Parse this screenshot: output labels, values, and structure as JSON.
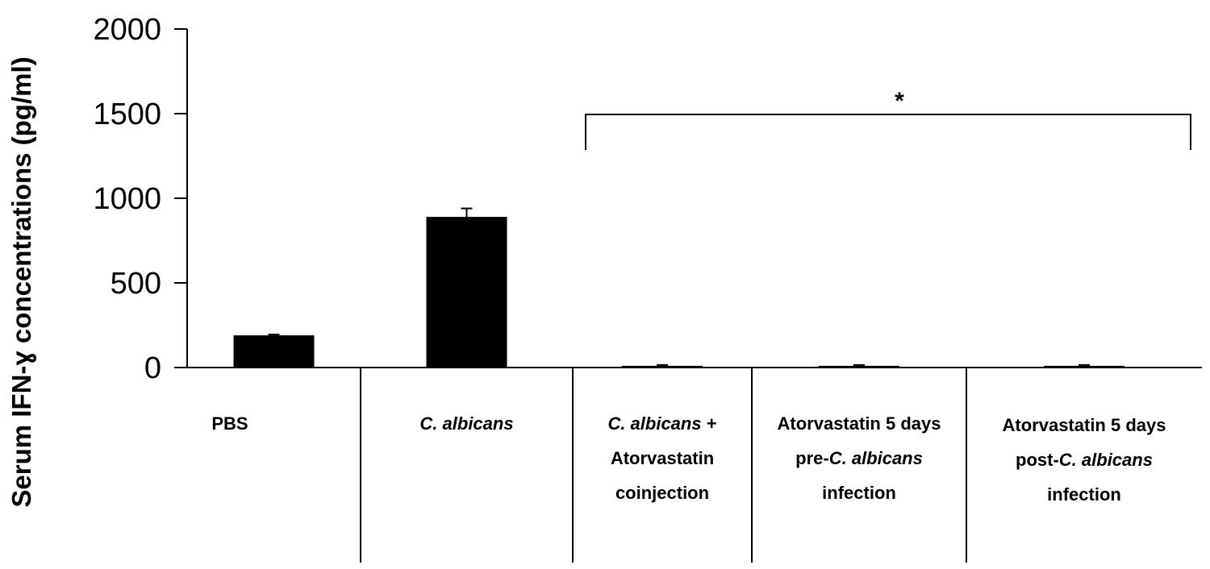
{
  "chart_data": {
    "type": "bar",
    "ylabel": "Serum IFN-ɣ concentrations (pg/ml)",
    "ylim": [
      0,
      2000
    ],
    "yticks": [
      0,
      500,
      1000,
      1500,
      2000
    ],
    "grid": false,
    "categories": [
      [
        {
          "text": "PBS",
          "italic": false
        }
      ],
      [
        {
          "text": "C. albicans",
          "italic": true
        }
      ],
      [
        {
          "text": "C. albicans",
          "italic": true
        },
        {
          "text": " +",
          "italic": false
        }
      ],
      [
        {
          "text": "Atorvastatin 5 days",
          "italic": false
        }
      ],
      [
        {
          "text": "Atorvastatin 5 days",
          "italic": false
        }
      ]
    ],
    "category_lines": [
      [
        [
          "PBS"
        ]
      ],
      [
        [
          "C. albicans"
        ]
      ],
      [
        [
          "C. albicans",
          " +"
        ],
        [
          "Atorvastatin"
        ],
        [
          "coinjection"
        ]
      ],
      [
        [
          "Atorvastatin 5 days"
        ],
        [
          "pre-",
          "C. albicans"
        ],
        [
          "infection"
        ]
      ],
      [
        [
          "Atorvastatin 5 days"
        ],
        [
          "post-",
          "C. albicans"
        ],
        [
          "infection"
        ]
      ]
    ],
    "values": [
      190,
      890,
      10,
      10,
      10
    ],
    "errors": [
      5,
      50,
      5,
      5,
      5
    ],
    "bar_color": "#000000",
    "significance": {
      "label": "*",
      "from_category": 2,
      "to_category": 4
    }
  }
}
